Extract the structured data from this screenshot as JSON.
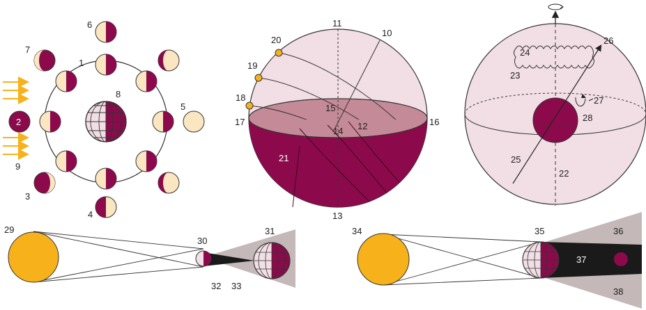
{
  "colors": {
    "maroon": "#8c0a4b",
    "pink": "#f2dfe6",
    "dome": "#c48a97",
    "cream": "#fbe6c2",
    "sun": "#f7b21b",
    "shadow": "#1a1a1a",
    "penumbra": "#c4b8b8",
    "line": "#333333"
  },
  "labels": {
    "l1": "1",
    "l2": "2",
    "l3": "3",
    "l4": "4",
    "l5": "5",
    "l6": "6",
    "l7": "7",
    "l8": "8",
    "l9": "9",
    "l10": "10",
    "l11": "11",
    "l12": "12",
    "l13": "13",
    "l14": "14",
    "l15": "15",
    "l16": "16",
    "l17": "17",
    "l18": "18",
    "l19": "19",
    "l20": "20",
    "l21": "21",
    "l22": "22",
    "l23": "23",
    "l24": "24",
    "l25": "25",
    "l26": "26",
    "l27": "27",
    "l28": "28",
    "l29": "29",
    "l30": "30",
    "l31": "31",
    "l32": "32",
    "l33": "33",
    "l34": "34",
    "l35": "35",
    "l36": "36",
    "l37": "37",
    "l38": "38"
  }
}
